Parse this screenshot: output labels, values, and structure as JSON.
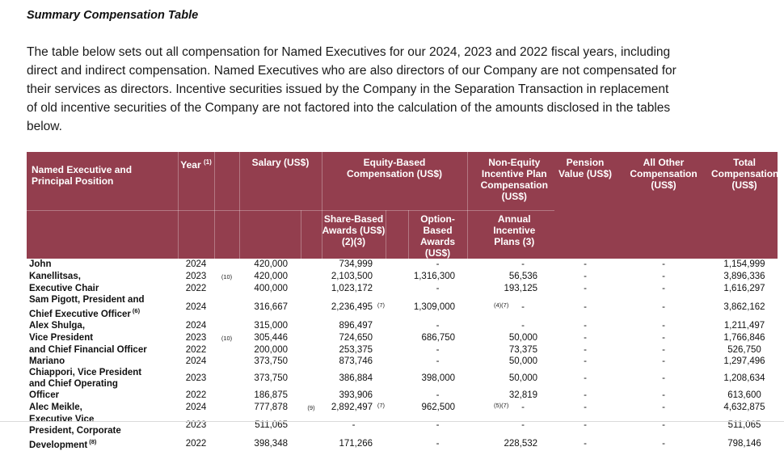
{
  "page": {
    "title": "Summary Compensation Table",
    "intro": "The table below sets out all compensation for Named Executives for our 2024, 2023 and 2022 fiscal years, including\ndirect and indirect compensation. Named Executives who are also directors of our Company are not compensated for\ntheir services as directors. Incentive securities issued by the Company in the Separation Transaction in replacement\nof old incentive securities of the Company are not factored into the calculation of the amounts disclosed in the tables\nbelow."
  },
  "table": {
    "header": {
      "named_executive": "Named Executive and\nPrincipal Position",
      "year": "Year ",
      "year_sup": "(1)",
      "salary": "Salary (US$)",
      "equity_group": "Equity-Based\nCompensation (US$)",
      "share_based": "Share-Based\nAwards (US$)\n(2)(3)",
      "option_based": "Option-Based\nAwards (US$)",
      "non_equity": "Non-Equity\nIncentive Plan\nCompensation\n(US$)",
      "annual_incentive": "Annual\nIncentive\nPlans (3)",
      "pension": "Pension\nValue (US$)",
      "all_other": "All Other\nCompensation\n(US$)",
      "total": "Total\nCompensation\n(US$)"
    },
    "rows": [
      {
        "name": [
          {
            "text": "John"
          }
        ],
        "year": "2024",
        "fn_year": "",
        "salary": "420,000",
        "fn_salary": "",
        "share": "734,999",
        "fn_share": "",
        "option": "-",
        "annual": "-",
        "fn_annual": "",
        "pension": "-",
        "other": "-",
        "total": "1,154,999",
        "tall": false
      },
      {
        "name": [
          {
            "text": "Kanellitsas,"
          }
        ],
        "year": "2023",
        "fn_year": "(10)",
        "salary": "420,000",
        "fn_salary": "",
        "share": "2,103,500",
        "fn_share": "",
        "option": "1,316,300",
        "annual": "56,536",
        "fn_annual": "",
        "pension": "-",
        "other": "-",
        "total": "3,896,336",
        "tall": false
      },
      {
        "name": [
          {
            "text": "Executive Chair"
          }
        ],
        "year": "2022",
        "fn_year": "",
        "salary": "400,000",
        "fn_salary": "",
        "share": "1,023,172",
        "fn_share": "",
        "option": "-",
        "annual": "193,125",
        "fn_annual": "",
        "pension": "-",
        "other": "-",
        "total": "1,616,297",
        "tall": false
      },
      {
        "name": [
          {
            "text": "Sam Pigott, President and"
          },
          {
            "text": "Chief Executive Officer",
            "sup": "(6)"
          }
        ],
        "year": "2024",
        "fn_year": "",
        "salary": "316,667",
        "fn_salary": "",
        "share": "2,236,495",
        "fn_share": "(7)",
        "option": "1,309,000",
        "annual": "-",
        "fn_annual": "(4)(7)",
        "pension": "-",
        "other": "-",
        "total": "3,862,162",
        "tall": true
      },
      {
        "name": [
          {
            "text": "Alex Shulga,"
          }
        ],
        "year": "2024",
        "fn_year": "",
        "salary": "315,000",
        "fn_salary": "",
        "share": "896,497",
        "fn_share": "",
        "option": "-",
        "annual": "-",
        "fn_annual": "",
        "pension": "-",
        "other": "-",
        "total": "1,211,497",
        "tall": false
      },
      {
        "name": [
          {
            "text": "Vice President"
          }
        ],
        "year": "2023",
        "fn_year": "(10)",
        "salary": "305,446",
        "fn_salary": "",
        "share": "724,650",
        "fn_share": "",
        "option": "686,750",
        "annual": "50,000",
        "fn_annual": "",
        "pension": "-",
        "other": "-",
        "total": "1,766,846",
        "tall": false
      },
      {
        "name": [
          {
            "text": "and Chief Financial Officer"
          }
        ],
        "year": "2022",
        "fn_year": "",
        "salary": "200,000",
        "fn_salary": "",
        "share": "253,375",
        "fn_share": "",
        "option": "-",
        "annual": "73,375",
        "fn_annual": "",
        "pension": "-",
        "other": "-",
        "total": "526,750",
        "tall": false
      },
      {
        "name": [
          {
            "text": "Mariano"
          }
        ],
        "year": "2024",
        "fn_year": "",
        "salary": "373,750",
        "fn_salary": "",
        "share": "873,746",
        "fn_share": "",
        "option": "-",
        "annual": "50,000",
        "fn_annual": "",
        "pension": "-",
        "other": "-",
        "total": "1,297,496",
        "tall": false
      },
      {
        "name": [
          {
            "text": "Chiappori, Vice President"
          },
          {
            "text": "and Chief Operating"
          }
        ],
        "year": "2023",
        "fn_year": "",
        "salary": "373,750",
        "fn_salary": "",
        "share": "386,884",
        "fn_share": "",
        "option": "398,000",
        "annual": "50,000",
        "fn_annual": "",
        "pension": "-",
        "other": "-",
        "total": "1,208,634",
        "tall": true
      },
      {
        "name": [
          {
            "text": "Officer"
          }
        ],
        "year": "2022",
        "fn_year": "",
        "salary": "186,875",
        "fn_salary": "",
        "share": "393,906",
        "fn_share": "",
        "option": "-",
        "annual": "32,819",
        "fn_annual": "",
        "pension": "-",
        "other": "-",
        "total": "613,600",
        "tall": false
      },
      {
        "name": [
          {
            "text": "Alec Meikle,"
          }
        ],
        "year": "2024",
        "fn_year": "",
        "salary": "777,878",
        "fn_salary": "(9)",
        "share": "2,892,497",
        "fn_share": "(7)",
        "option": "962,500",
        "annual": "-",
        "fn_annual": "(5)(7)",
        "pension": "-",
        "other": "-",
        "total": "4,632,875",
        "tall": false
      },
      {
        "name": [
          {
            "text": "Executive Vice"
          },
          {
            "text": "President, Corporate"
          }
        ],
        "year": "2023",
        "fn_year": "",
        "salary": "511,065",
        "fn_salary": "",
        "share": "-",
        "fn_share": "",
        "option": "-",
        "annual": "-",
        "fn_annual": "",
        "pension": "-",
        "other": "-",
        "total": "511,065",
        "tall": true
      },
      {
        "name": [
          {
            "text": "Development",
            "sup": "(8)"
          }
        ],
        "year": "2022",
        "fn_year": "",
        "salary": "398,348",
        "fn_salary": "",
        "share": "171,266",
        "fn_share": "",
        "option": "-",
        "annual": "228,532",
        "fn_annual": "",
        "pension": "-",
        "other": "-",
        "total": "798,146",
        "tall": false
      }
    ]
  }
}
